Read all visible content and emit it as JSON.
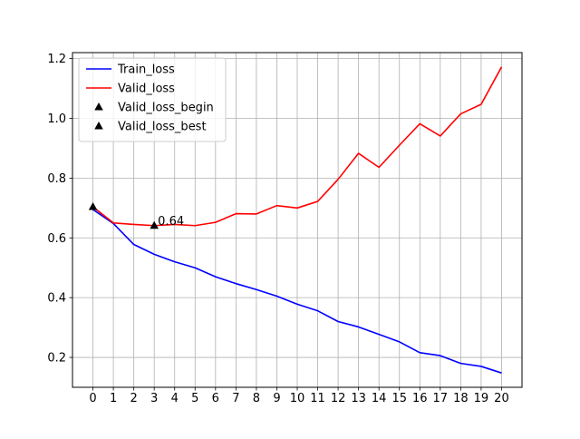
{
  "chart_data": {
    "type": "line",
    "title": "",
    "xlabel": "",
    "ylabel": "",
    "x": [
      0,
      1,
      2,
      3,
      4,
      5,
      6,
      7,
      8,
      9,
      10,
      11,
      12,
      13,
      14,
      15,
      16,
      17,
      18,
      19,
      20
    ],
    "xticks": [
      "0",
      "1",
      "2",
      "3",
      "4",
      "5",
      "6",
      "7",
      "8",
      "9",
      "10",
      "11",
      "12",
      "13",
      "14",
      "15",
      "16",
      "17",
      "18",
      "19",
      "20"
    ],
    "yticks": [
      "0.2",
      "0.4",
      "0.6",
      "0.8",
      "1.0",
      "1.2"
    ],
    "xlim": [
      -1,
      21
    ],
    "ylim": [
      0.1,
      1.22
    ],
    "grid": true,
    "legend_position": "top-left",
    "series": [
      {
        "name": "Train_loss",
        "color": "#0000ff",
        "values": [
          0.695,
          0.648,
          0.578,
          0.545,
          0.52,
          0.5,
          0.47,
          0.447,
          0.427,
          0.405,
          0.378,
          0.356,
          0.32,
          0.302,
          0.277,
          0.252,
          0.216,
          0.206,
          0.18,
          0.17,
          0.148
        ]
      },
      {
        "name": "Valid_loss",
        "color": "#ff0000",
        "values": [
          0.704,
          0.65,
          0.645,
          0.641,
          0.645,
          0.641,
          0.652,
          0.681,
          0.68,
          0.708,
          0.7,
          0.722,
          0.796,
          0.883,
          0.836,
          0.91,
          0.982,
          0.941,
          1.015,
          1.047,
          1.172
        ]
      }
    ],
    "markers": [
      {
        "name": "Valid_loss_begin",
        "x": 0,
        "y": 0.704,
        "color": "#000000",
        "symbol": "triangle"
      },
      {
        "name": "Valid_loss_best",
        "x": 3,
        "y": 0.641,
        "color": "#000000",
        "symbol": "triangle"
      }
    ],
    "annotations": [
      {
        "text": "0.64",
        "x": 3,
        "y": 0.641
      }
    ]
  }
}
